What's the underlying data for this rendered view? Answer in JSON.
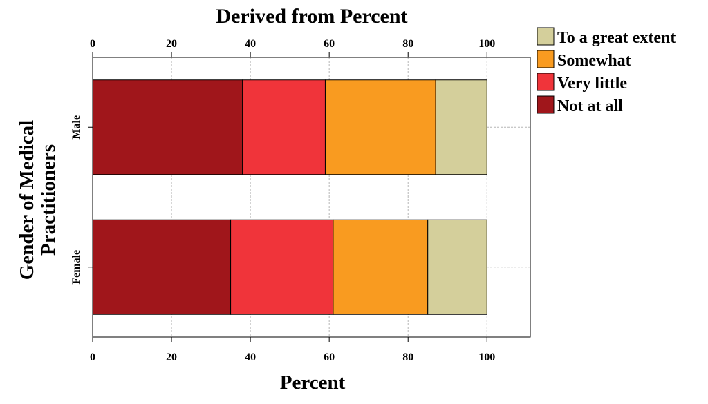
{
  "chart_data": {
    "type": "bar",
    "orientation": "horizontal",
    "stacked": true,
    "title": "Derived from Percent",
    "xlabel": "Percent",
    "ylabel": "Gender of Medical Practitioners",
    "xlim": [
      0,
      111
    ],
    "xticks": [
      0,
      20,
      40,
      60,
      80,
      100
    ],
    "xtick_labels": [
      "0",
      "20",
      "40",
      "60",
      "80",
      "100"
    ],
    "categories": [
      "Male",
      "Female"
    ],
    "series": [
      {
        "name": "Not at all",
        "color": "#A0161B",
        "values": [
          38,
          35
        ]
      },
      {
        "name": "Very little",
        "color": "#F0343A",
        "values": [
          21,
          26
        ]
      },
      {
        "name": "Somewhat",
        "color": "#F99B20",
        "values": [
          28,
          24
        ]
      },
      {
        "name": "To a great extent",
        "color": "#D4CF9B",
        "values": [
          13,
          15
        ]
      }
    ],
    "legend": {
      "position": "top-right",
      "order": [
        "To a great extent",
        "Somewhat",
        "Very little",
        "Not at all"
      ]
    },
    "grid": true
  }
}
